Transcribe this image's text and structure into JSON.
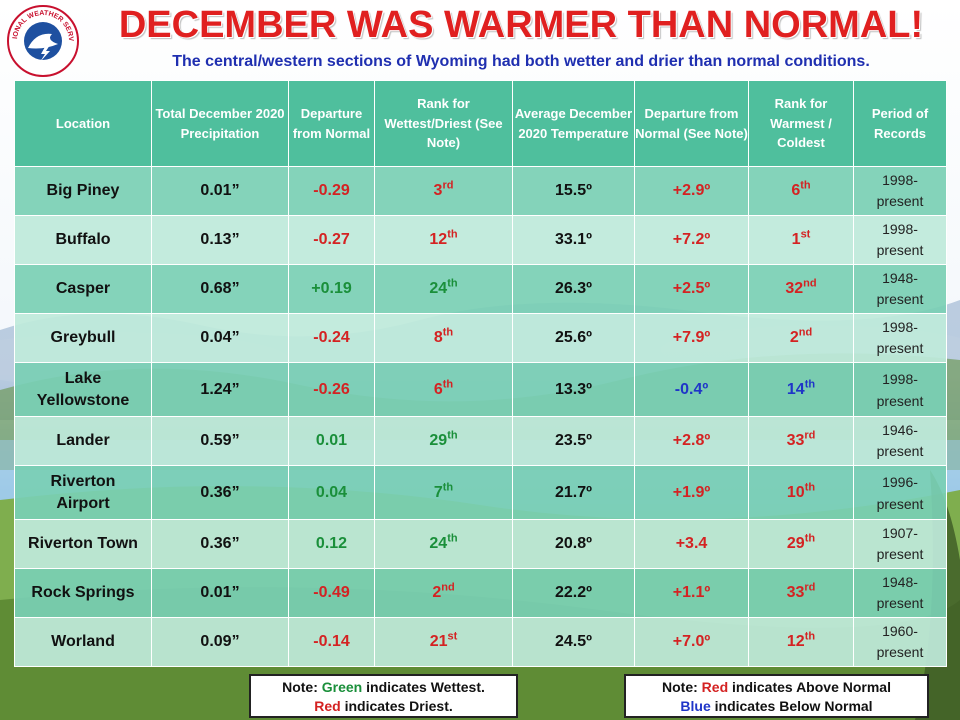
{
  "header": {
    "title": "DECEMBER WAS WARMER  THAN NORMAL!",
    "subtitle": "The central/western sections of Wyoming had both wetter and drier than  normal conditions.",
    "logo_text": "NATIONAL WEATHER SERVICE"
  },
  "colors": {
    "title_red": "#e02020",
    "subtitle_blue": "#1f2fb0",
    "header_teal": "#4fbf9d",
    "wettest_green": "#1a8f3a",
    "driest_red": "#d42222",
    "below_blue": "#1f35c8"
  },
  "table": {
    "columns": [
      "Location",
      "Total December 2020 Precipitation",
      "Departure from Normal",
      "Rank for Wettest/Driest (See Note)",
      "Average December 2020 Temperature",
      "Departure from Normal (See Note)",
      "Rank for Warmest / Coldest",
      "Period of Records"
    ],
    "rows": [
      {
        "location": "Big Piney",
        "precip": "0.01”",
        "precip_dep": "-0.29",
        "precip_dep_color": "red",
        "wet_rank": "3",
        "wet_suffix": "rd",
        "wet_color": "red",
        "temp": "15.5º",
        "temp_dep": "+2.9º",
        "temp_dep_color": "red",
        "warm_rank": "6",
        "warm_suffix": "th",
        "warm_color": "red",
        "period_start": "1998-",
        "period_end": "present"
      },
      {
        "location": "Buffalo",
        "precip": "0.13”",
        "precip_dep": "-0.27",
        "precip_dep_color": "red",
        "wet_rank": "12",
        "wet_suffix": "th",
        "wet_color": "red",
        "temp": "33.1º",
        "temp_dep": "+7.2º",
        "temp_dep_color": "red",
        "warm_rank": "1",
        "warm_suffix": "st",
        "warm_color": "red",
        "period_start": "1998-",
        "period_end": "present"
      },
      {
        "location": "Casper",
        "precip": "0.68”",
        "precip_dep": "+0.19",
        "precip_dep_color": "green",
        "wet_rank": "24",
        "wet_suffix": "th",
        "wet_color": "green",
        "temp": "26.3º",
        "temp_dep": "+2.5º",
        "temp_dep_color": "red",
        "warm_rank": "32",
        "warm_suffix": "nd",
        "warm_color": "red",
        "period_start": "1948-",
        "period_end": "present"
      },
      {
        "location": "Greybull",
        "precip": "0.04”",
        "precip_dep": "-0.24",
        "precip_dep_color": "red",
        "wet_rank": "8",
        "wet_suffix": "th",
        "wet_color": "red",
        "temp": "25.6º",
        "temp_dep": "+7.9º",
        "temp_dep_color": "red",
        "warm_rank": "2",
        "warm_suffix": "nd",
        "warm_color": "red",
        "period_start": "1998-",
        "period_end": "present"
      },
      {
        "location_line1": "Lake",
        "location_line2": "Yellowstone",
        "precip": "1.24”",
        "precip_dep": "-0.26",
        "precip_dep_color": "red",
        "wet_rank": "6",
        "wet_suffix": "th",
        "wet_color": "red",
        "temp": "13.3º",
        "temp_dep": "-0.4º",
        "temp_dep_color": "blue",
        "warm_rank": "14",
        "warm_suffix": "th",
        "warm_color": "blue",
        "period_start": "1998-",
        "period_end": "present"
      },
      {
        "location": "Lander",
        "precip": "0.59”",
        "precip_dep": "0.01",
        "precip_dep_color": "green",
        "wet_rank": "29",
        "wet_suffix": "th",
        "wet_color": "green",
        "temp": "23.5º",
        "temp_dep": "+2.8º",
        "temp_dep_color": "red",
        "warm_rank": "33",
        "warm_suffix": "rd",
        "warm_color": "red",
        "period_start": "1946-",
        "period_end": "present"
      },
      {
        "location_line1": "Riverton",
        "location_line2": "Airport",
        "precip": "0.36”",
        "precip_dep": "0.04",
        "precip_dep_color": "green",
        "wet_rank": "7",
        "wet_suffix": "th",
        "wet_color": "green",
        "temp": "21.7º",
        "temp_dep": "+1.9º",
        "temp_dep_color": "red",
        "warm_rank": "10",
        "warm_suffix": "th",
        "warm_color": "red",
        "period_start": "1996-",
        "period_end": "present"
      },
      {
        "location": "Riverton Town",
        "precip": "0.36”",
        "precip_dep": "0.12",
        "precip_dep_color": "green",
        "wet_rank": "24",
        "wet_suffix": "th",
        "wet_color": "green",
        "temp": "20.8º",
        "temp_dep": "+3.4",
        "temp_dep_color": "red",
        "warm_rank": "29",
        "warm_suffix": "th",
        "warm_color": "red",
        "period_start": "1907-",
        "period_end": "present"
      },
      {
        "location": "Rock Springs",
        "precip": "0.01”",
        "precip_dep": "-0.49",
        "precip_dep_color": "red",
        "wet_rank": "2",
        "wet_suffix": "nd",
        "wet_color": "red",
        "temp": "22.2º",
        "temp_dep": "+1.1º",
        "temp_dep_color": "red",
        "warm_rank": "33",
        "warm_suffix": "rd",
        "warm_color": "red",
        "period_start": "1948-",
        "period_end": "present"
      },
      {
        "location": "Worland",
        "precip": "0.09”",
        "precip_dep": "-0.14",
        "precip_dep_color": "red",
        "wet_rank": "21",
        "wet_suffix": "st",
        "wet_color": "red",
        "temp": "24.5º",
        "temp_dep": "+7.0º",
        "temp_dep_color": "red",
        "warm_rank": "12",
        "warm_suffix": "th",
        "warm_color": "red",
        "period_start": "1960-",
        "period_end": "present"
      }
    ]
  },
  "notes": {
    "left": {
      "prefix": "Note: ",
      "green_word": "Green",
      "green_rest": " indicates Wettest.",
      "red_word": "Red",
      "red_rest": " indicates Driest."
    },
    "right": {
      "prefix": "Note: ",
      "red_word": "Red",
      "red_rest": " indicates Above Normal",
      "blue_word": "Blue",
      "blue_rest": " indicates Below Normal"
    }
  }
}
